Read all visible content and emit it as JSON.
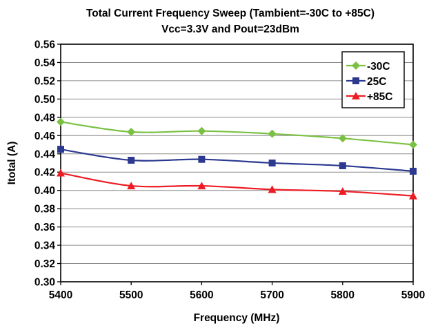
{
  "chart_data": {
    "type": "line",
    "title": "Total Current Frequency Sweep (Tambient=-30C to +85C)",
    "subtitle": "Vcc=3.3V and Pout=23dBm",
    "xlabel": "Frequency (MHz)",
    "ylabel": "Itotal (A)",
    "x": [
      5400,
      5500,
      5600,
      5700,
      5800,
      5900
    ],
    "xlim": [
      5400,
      5900
    ],
    "ylim": [
      0.3,
      0.56
    ],
    "x_ticks": [
      "5400",
      "5500",
      "5600",
      "5700",
      "5800",
      "5900"
    ],
    "y_ticks": [
      "0.30",
      "0.32",
      "0.34",
      "0.36",
      "0.38",
      "0.40",
      "0.42",
      "0.44",
      "0.46",
      "0.48",
      "0.50",
      "0.52",
      "0.54",
      "0.56"
    ],
    "grid": "horizontal",
    "legend_position": "top-right",
    "series": [
      {
        "name": "-30C",
        "color": "#7ac143",
        "marker": "diamond",
        "values": [
          0.475,
          0.464,
          0.465,
          0.462,
          0.457,
          0.45
        ]
      },
      {
        "name": "25C",
        "color": "#2b3990",
        "marker": "square",
        "values": [
          0.445,
          0.433,
          0.434,
          0.43,
          0.427,
          0.421
        ]
      },
      {
        "name": "+85C",
        "color": "#ed1c24",
        "marker": "triangle",
        "values": [
          0.419,
          0.405,
          0.405,
          0.401,
          0.399,
          0.394
        ]
      }
    ]
  }
}
